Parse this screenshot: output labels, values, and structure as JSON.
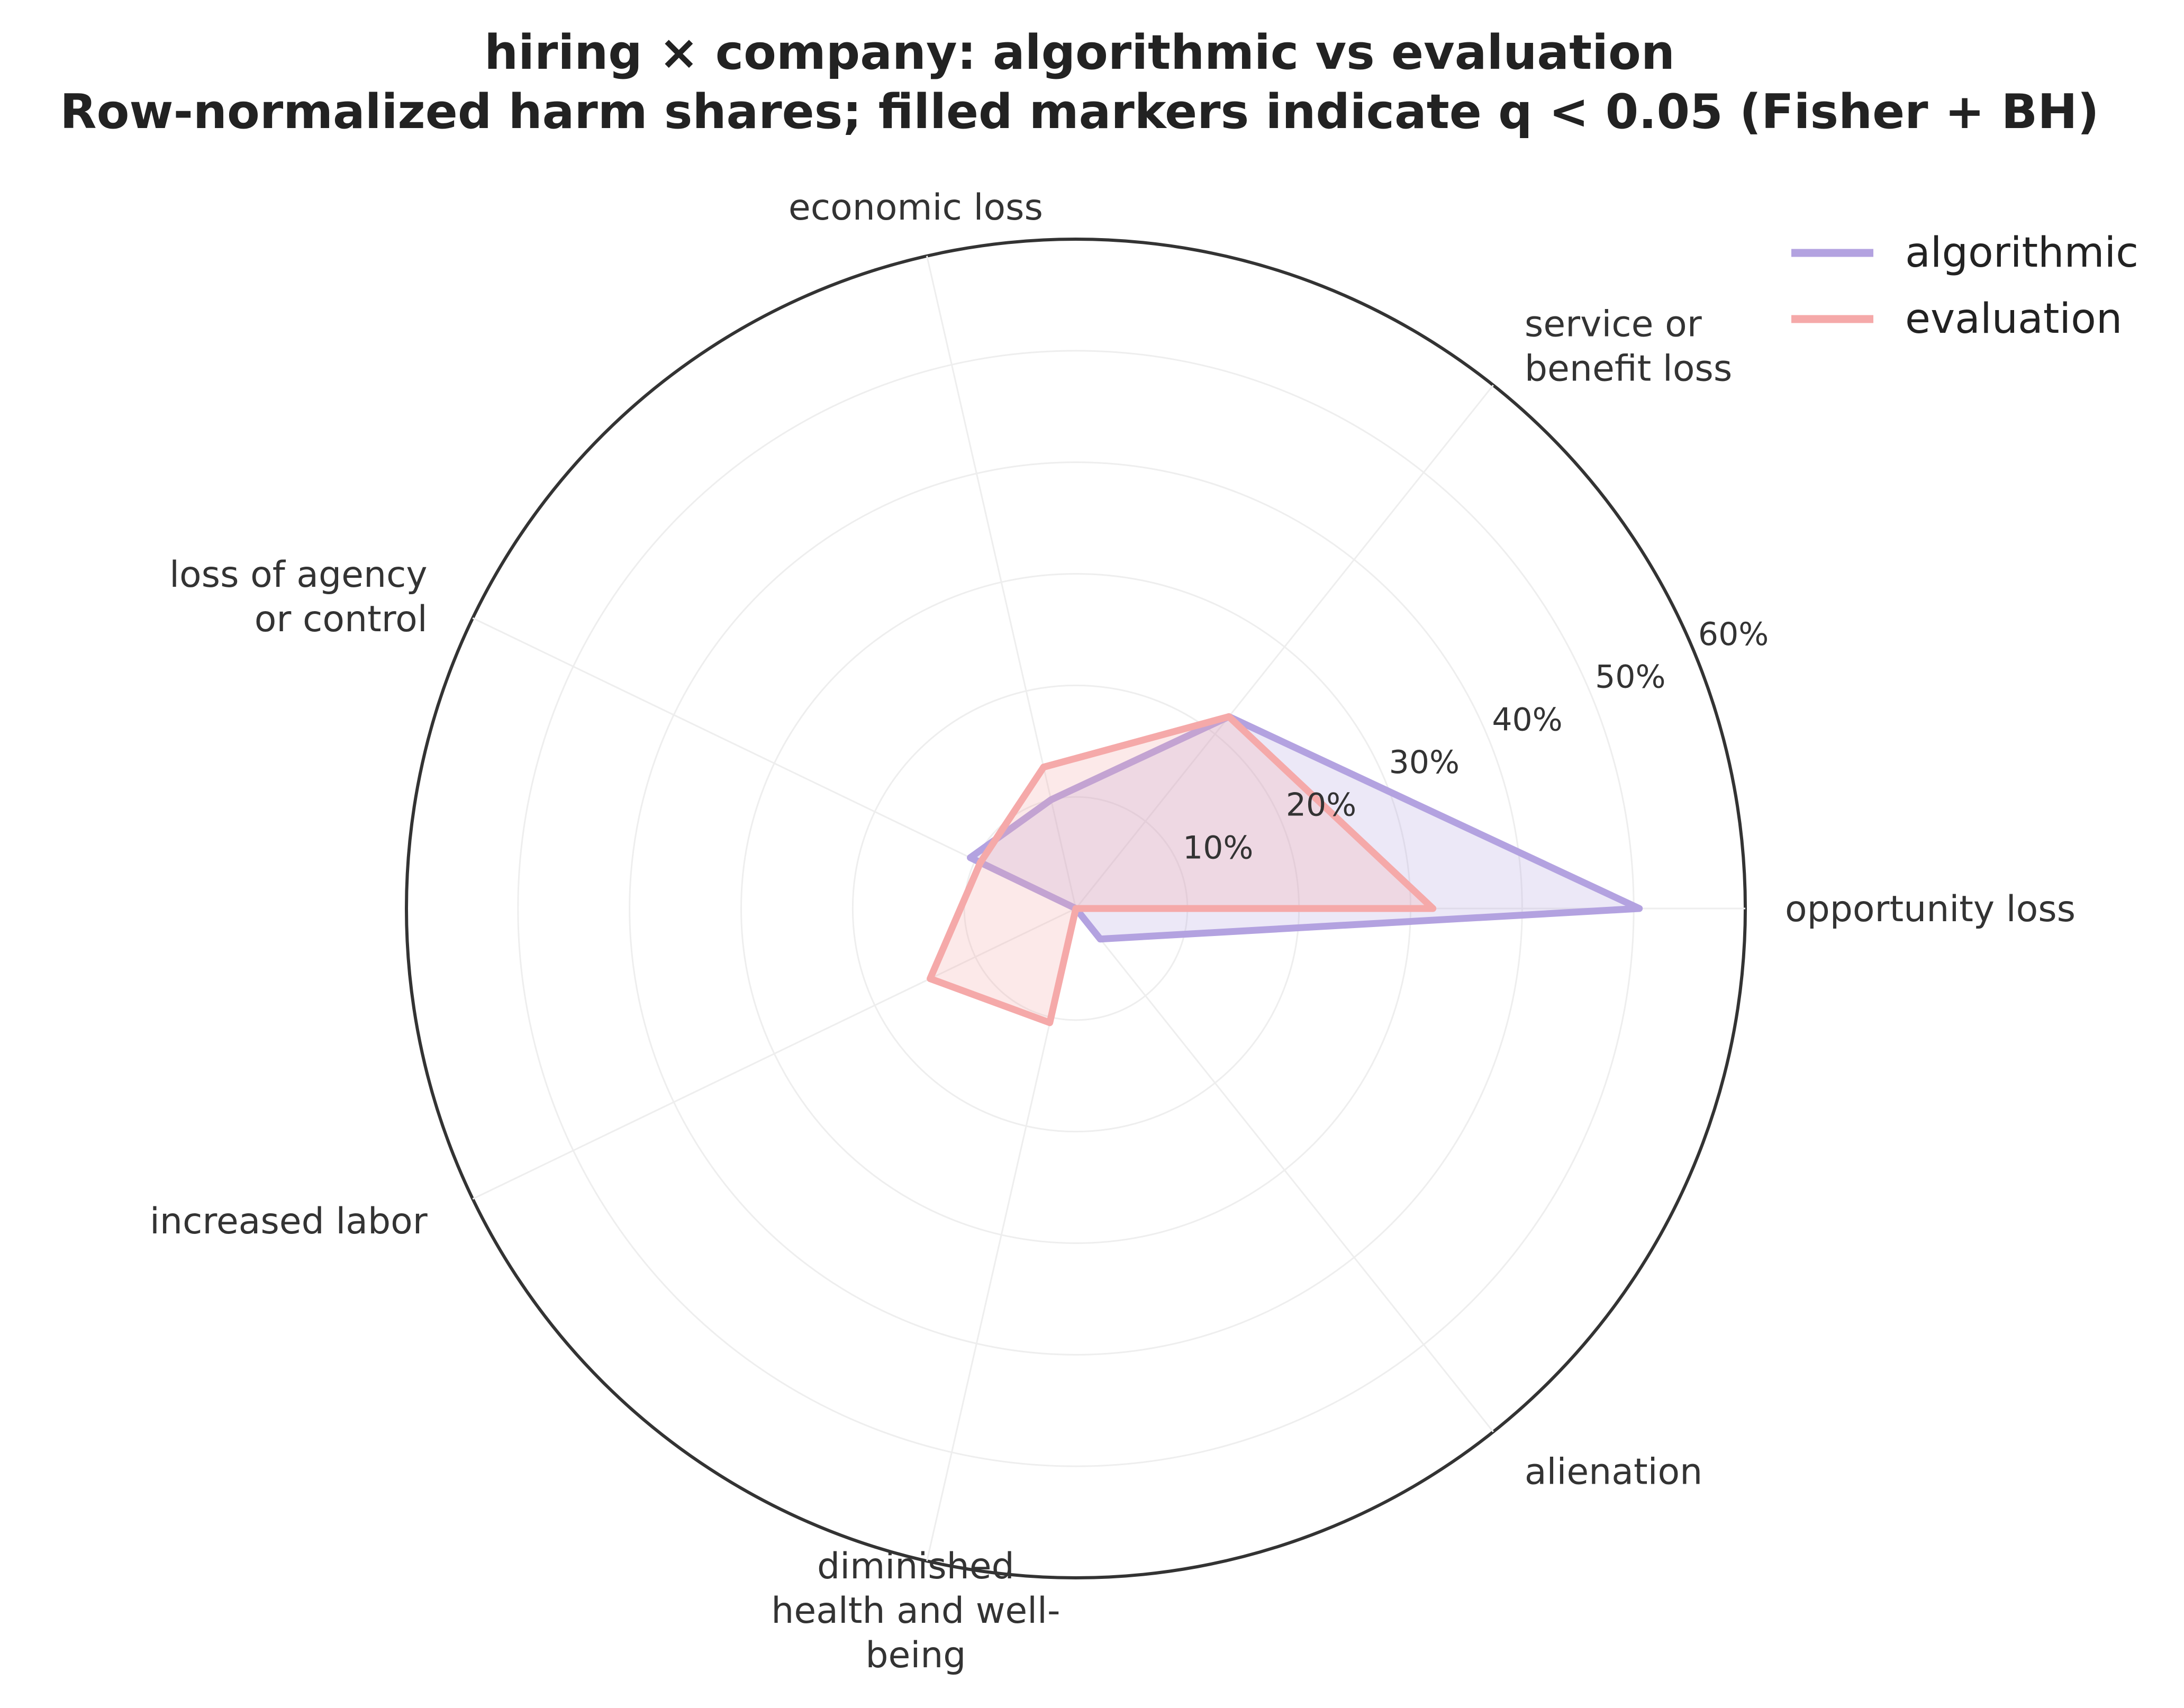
{
  "chart_data": {
    "type": "radar",
    "title": "hiring × company: algorithmic vs evaluation",
    "subtitle": "Row-normalized harm shares; filled markers indicate q < 0.05 (Fisher + BH)",
    "categories": [
      "opportunity loss",
      "service or benefit loss",
      "economic loss",
      "loss of agency or control",
      "increased labor",
      "diminished health and well-being",
      "alienation"
    ],
    "category_labels": [
      [
        "opportunity loss"
      ],
      [
        "service or",
        "benefit loss"
      ],
      [
        "economic loss"
      ],
      [
        "loss of agency",
        "or control"
      ],
      [
        "increased labor"
      ],
      [
        "diminished",
        "health and well-",
        "being"
      ],
      [
        "alienation"
      ]
    ],
    "r_ticks": [
      10,
      20,
      30,
      40,
      50,
      60
    ],
    "r_tick_labels": [
      "10%",
      "20%",
      "30%",
      "40%",
      "50%",
      "60%"
    ],
    "rlim": [
      0,
      60
    ],
    "grid": true,
    "legend_position": "top-right",
    "series": [
      {
        "name": "algorithmic",
        "color": "#b3a2e0",
        "values": [
          50.5,
          22.0,
          10.0,
          10.5,
          0.0,
          0.0,
          3.5
        ]
      },
      {
        "name": "evaluation",
        "color": "#f5a9a9",
        "values": [
          32.0,
          22.0,
          13.0,
          9.5,
          14.5,
          10.5,
          0.0
        ]
      }
    ]
  }
}
